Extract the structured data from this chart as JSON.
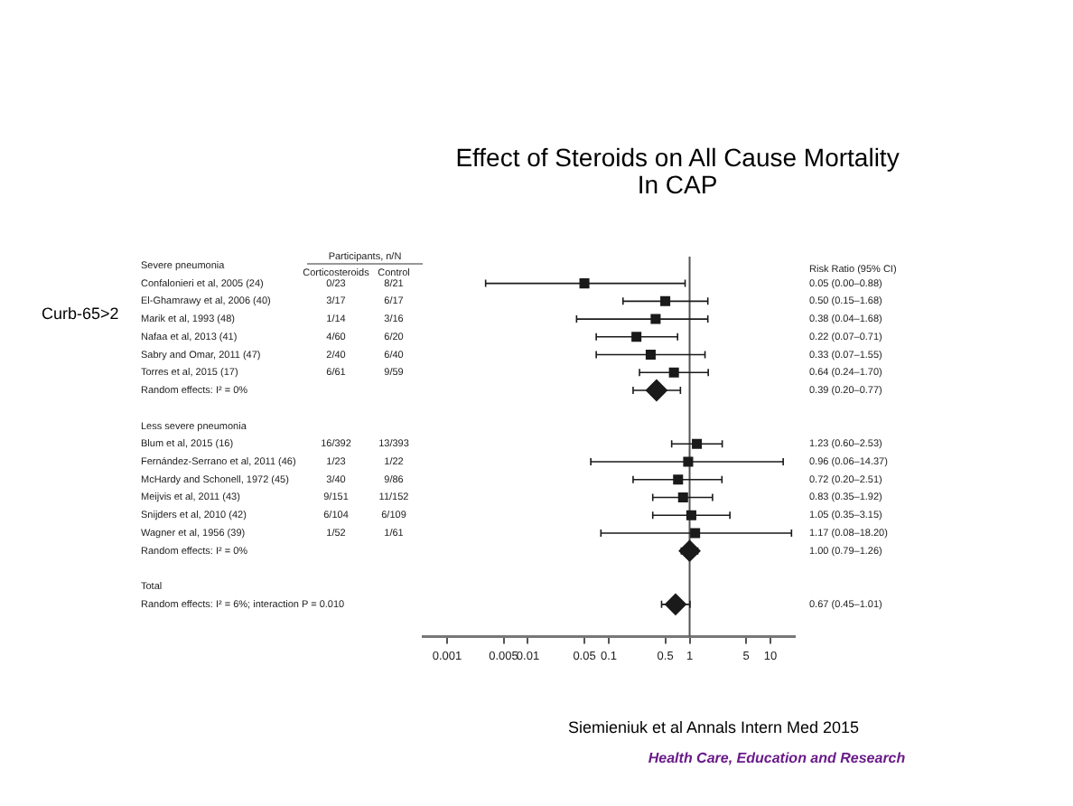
{
  "chart_data": {
    "type": "scatter",
    "orientation": "horizontal",
    "title": "Effect of Steroids on All Cause Mortality\nIn CAP",
    "categories": [
      "Severe pneumonia",
      "Confalonieri et al, 2005 (24)",
      "El-Ghamrawy et al, 2006 (40)",
      "Marik et al, 1993 (48)",
      "Nafaa et al, 2013 (41)",
      "Sabry and Omar, 2011 (47)",
      "Torres et al, 2015 (17)",
      "Random effects: I² = 0%",
      null,
      "Less severe pneumonia",
      "Blum et al, 2015 (16)",
      "Fernández-Serrano et al, 2011 (46)",
      "McHardy and Schonell, 1972 (45)",
      "Meijvis et al, 2011 (43)",
      "Snijders et al, 2010 (42)",
      "Wagner et al, 1956 (39)",
      "Random effects: I² = 0%",
      null,
      "Total",
      "Random effects: I² = 6%; interaction P = 0.010"
    ],
    "series": [
      {
        "color": "#1a1a1a",
        "marker": "square",
        "values": [
          null,
          0.05,
          0.5,
          0.38,
          0.22,
          0.33,
          0.64,
          null,
          null,
          null,
          1.23,
          0.96,
          0.72,
          0.83,
          1.05,
          1.17,
          null,
          null,
          null,
          null
        ],
        "errors": [
          null,
          [
            0.003,
            0.88
          ],
          [
            0.15,
            1.68
          ],
          [
            0.04,
            1.68
          ],
          [
            0.07,
            0.71
          ],
          [
            0.07,
            1.55
          ],
          [
            0.24,
            1.7
          ],
          null,
          null,
          null,
          [
            0.6,
            2.53
          ],
          [
            0.06,
            14.37
          ],
          [
            0.2,
            2.51
          ],
          [
            0.35,
            1.92
          ],
          [
            0.35,
            3.15
          ],
          [
            0.08,
            18.2
          ],
          null,
          null,
          null,
          null
        ]
      },
      {
        "color": "#1a1a1a",
        "marker": "diamond",
        "values": [
          null,
          null,
          null,
          null,
          null,
          null,
          null,
          0.39,
          null,
          null,
          null,
          null,
          null,
          null,
          null,
          null,
          1.0,
          null,
          null,
          0.67
        ],
        "errors": [
          null,
          null,
          null,
          null,
          null,
          null,
          null,
          [
            0.2,
            0.77
          ],
          null,
          null,
          null,
          null,
          null,
          null,
          null,
          null,
          [
            0.79,
            1.26
          ],
          null,
          null,
          [
            0.45,
            1.01
          ]
        ]
      }
    ],
    "log": "x",
    "xlim": [
      0.0005,
      20
    ],
    "xticks": [
      0.001,
      0.005,
      0.01,
      0.05,
      0.1,
      0.5,
      1,
      5,
      10
    ],
    "grid": false,
    "legend": false,
    "tick_labels": "x",
    "ref_lines": [
      {
        "axis": "x",
        "value": 1,
        "color": "#555555"
      }
    ],
    "annotations": [
      "Curb-65>2",
      "Participants, n/N",
      "Corticosteroids",
      "Control",
      "Risk Ratio (95% CI)",
      "Siemieniuk et al Annals Intern Med 2015",
      "Health Care, Education and Research",
      "0/23",
      "8/21",
      "3/17",
      "6/17",
      "1/14",
      "3/16",
      "4/60",
      "6/20",
      "2/40",
      "6/40",
      "6/61",
      "9/59",
      "16/392",
      "13/393",
      "1/23",
      "1/22",
      "3/40",
      "9/86",
      "9/151",
      "11/152",
      "6/104",
      "6/109",
      "1/52",
      "1/61",
      "0.05 (0.00–0.88)",
      "0.50 (0.15–1.68)",
      "0.38 (0.04–1.68)",
      "0.22 (0.07–0.71)",
      "0.33 (0.07–1.55)",
      "0.64 (0.24–1.70)",
      "0.39 (0.20–0.77)",
      "1.23 (0.60–2.53)",
      "0.96 (0.06–14.37)",
      "0.72 (0.20–2.51)",
      "0.83 (0.35–1.92)",
      "1.05 (0.35–3.15)",
      "1.17 (0.08–18.20)",
      "1.00 (0.79–1.26)",
      "0.67 (0.45–1.01)"
    ]
  }
}
